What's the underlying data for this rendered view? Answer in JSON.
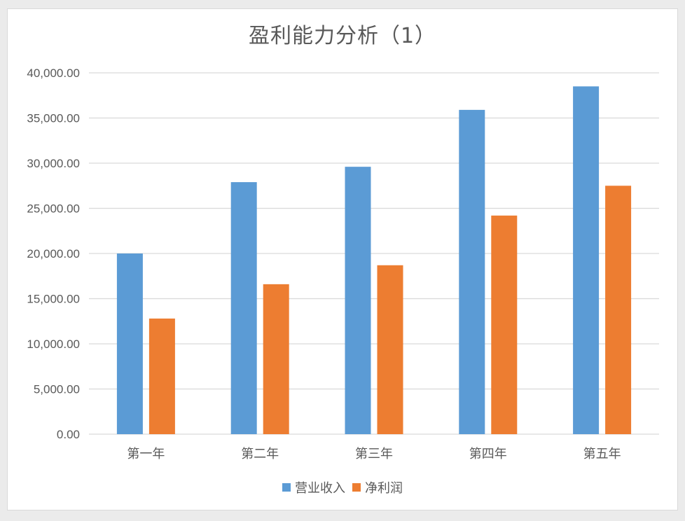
{
  "chart_data": {
    "type": "bar",
    "title": "盈利能力分析（1）",
    "categories": [
      "第一年",
      "第二年",
      "第三年",
      "第四年",
      "第五年"
    ],
    "series": [
      {
        "name": "营业收入",
        "values": [
          20000,
          27900,
          29600,
          35900,
          38500
        ],
        "color": "#5b9bd5"
      },
      {
        "name": "净利润",
        "values": [
          12800,
          16600,
          18700,
          24200,
          27500
        ],
        "color": "#ed7d31"
      }
    ],
    "ylim": [
      0,
      40000
    ],
    "yticks": [
      "0.00",
      "5,000.00",
      "10,000.00",
      "15,000.00",
      "20,000.00",
      "25,000.00",
      "30,000.00",
      "35,000.00",
      "40,000.00"
    ],
    "xlabel": "",
    "ylabel": "",
    "grid": true,
    "legend_position": "bottom",
    "gridline_color": "#d9d9d9"
  }
}
